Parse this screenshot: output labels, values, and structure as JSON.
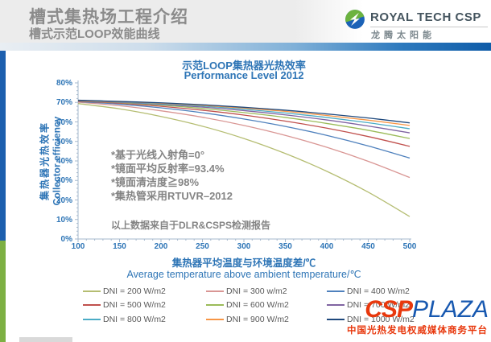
{
  "header": {
    "title": "槽式集热场工程介绍",
    "subtitle": "槽式示范LOOP效能曲线",
    "logo": {
      "brand": "ROYAL TECH CSP",
      "brand_cn": "龙腾太阳能"
    }
  },
  "chart": {
    "title_cn": "示范LOOP集热器光热效率",
    "title_en": "Performance Level 2012",
    "y_axis": {
      "label_cn": "集热器光热效率",
      "label_en": "Collector efficiency",
      "ticks": [
        {
          "v": 80,
          "t": "80%"
        },
        {
          "v": 70,
          "t": "70%"
        },
        {
          "v": 60,
          "t": "60%"
        },
        {
          "v": 50,
          "t": "50%"
        },
        {
          "v": 40,
          "t": "40%"
        },
        {
          "v": 30,
          "t": "30%"
        },
        {
          "v": 20,
          "t": "20%"
        },
        {
          "v": 10,
          "t": "10%"
        },
        {
          "v": 0,
          "t": "0%"
        }
      ]
    },
    "x_axis": {
      "label_cn": "集热器平均温度与环境温度差/℃",
      "label_en": "Average temperature above ambient temperature/℃",
      "ticks": [
        {
          "v": 100,
          "t": "100"
        },
        {
          "v": 150,
          "t": "150"
        },
        {
          "v": 200,
          "t": "200"
        },
        {
          "v": 250,
          "t": "250"
        },
        {
          "v": 300,
          "t": "300"
        },
        {
          "v": 350,
          "t": "350"
        },
        {
          "v": 400,
          "t": "400"
        },
        {
          "v": 450,
          "t": "450"
        },
        {
          "v": 500,
          "t": "500"
        }
      ]
    },
    "annotations": [
      "*基于光线入射角=0°",
      "*镜面平均反射率=93.4%",
      "*镜面清洁度≧98%",
      "*集热管采用RTUVR–2012"
    ],
    "footnote": "以上数据来自于DLR&CSPS检测报告"
  },
  "chart_data": {
    "type": "line",
    "title": "示范LOOP集热器光热效率 Performance Level 2012",
    "xlabel": "集热器平均温度与环境温度差/℃ (Average temperature above ambient temperature/℃)",
    "ylabel": "集热器光热效率 Collector efficiency (%)",
    "xlim": [
      100,
      500
    ],
    "ylim": [
      0,
      80
    ],
    "grid": false,
    "legend_position": "bottom",
    "x": [
      100,
      150,
      200,
      250,
      300,
      350,
      400,
      450,
      500
    ],
    "series": [
      {
        "name": "DNI = 200 W/m2",
        "color": "#b5bd72",
        "values": [
          69.4,
          66.7,
          62.8,
          57.8,
          51.5,
          43.8,
          34.7,
          24.0,
          11.5
        ]
      },
      {
        "name": "DNI = 300 w/m2",
        "color": "#d99694",
        "values": [
          70.1,
          68.3,
          65.7,
          62.4,
          58.2,
          53.1,
          47.0,
          39.8,
          31.5
        ]
      },
      {
        "name": "DNI = 400 W/m2",
        "color": "#4f81bd",
        "values": [
          70.4,
          69.1,
          67.2,
          64.7,
          61.5,
          57.7,
          53.1,
          47.7,
          41.5
        ]
      },
      {
        "name": "DNI = 500 W/m2",
        "color": "#c0504d",
        "values": [
          70.6,
          69.6,
          68.0,
          66.0,
          63.5,
          60.4,
          56.8,
          52.5,
          47.5
        ]
      },
      {
        "name": "DNI = 600 W/m2",
        "color": "#9bbb59",
        "values": [
          70.8,
          69.9,
          68.6,
          66.9,
          64.8,
          62.3,
          59.2,
          55.7,
          51.5
        ]
      },
      {
        "name": "DNI = 700 W/m2",
        "color": "#8064a2",
        "values": [
          70.9,
          70.1,
          69.0,
          67.6,
          65.8,
          63.6,
          61.0,
          57.9,
          54.4
        ]
      },
      {
        "name": "DNI = 800 W/m2",
        "color": "#4bacc6",
        "values": [
          71.0,
          70.3,
          69.3,
          68.1,
          66.5,
          64.6,
          62.3,
          59.6,
          56.5
        ]
      },
      {
        "name": "DNI = 900 W/m2",
        "color": "#f79646",
        "values": [
          71.0,
          70.4,
          69.6,
          68.5,
          67.1,
          65.4,
          63.3,
          60.9,
          58.2
        ]
      },
      {
        "name": "DNI = 1000 W/m2",
        "color": "#1f497d",
        "values": [
          71.1,
          70.5,
          69.8,
          68.8,
          67.5,
          66.0,
          64.1,
          62.0,
          59.5
        ]
      }
    ]
  },
  "footer": {
    "brand_csp": "CSP",
    "brand_plaza": "PLAZA",
    "tagline": "中国光热发电权威媒体商务平台"
  },
  "theme": {
    "accent_blue": "#2e75b6",
    "axis_color": "#a6b8cc",
    "stripe_blue": "#1d5fae",
    "stripe_green": "#7db043",
    "logo_green": "#6cb33f",
    "logo_blue": "#1b62b7",
    "footer_red": "#e8380d",
    "footer_blue": "#1758b0"
  }
}
